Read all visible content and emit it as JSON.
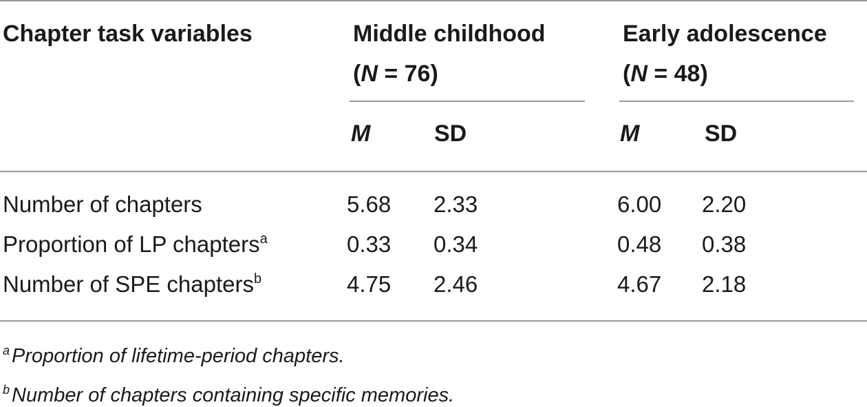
{
  "table": {
    "header": {
      "row_label_heading": "Chapter task variables",
      "groups": [
        {
          "title": "Middle childhood",
          "n_prefix": "(",
          "n_symbol": "N",
          "n_value": " = 76)"
        },
        {
          "title": "Early adolescence",
          "n_prefix": "(",
          "n_symbol": "N",
          "n_value": " = 48)"
        }
      ],
      "subheaders": {
        "mean": "M",
        "sd": "SD"
      }
    },
    "rows": [
      {
        "label": "Number of chapters",
        "note": "",
        "values": [
          "5.68",
          "2.33",
          "6.00",
          "2.20"
        ]
      },
      {
        "label": "Proportion of LP chapters",
        "note": "a",
        "values": [
          "0.33",
          "0.34",
          "0.48",
          "0.38"
        ]
      },
      {
        "label": "Number of SPE chapters",
        "note": "b",
        "values": [
          "4.75",
          "2.46",
          "4.67",
          "2.18"
        ]
      }
    ],
    "footnotes": [
      {
        "mark": "a",
        "text": "Proportion of lifetime-period chapters."
      },
      {
        "mark": "b",
        "text": "Number of chapters containing specific memories."
      }
    ]
  }
}
